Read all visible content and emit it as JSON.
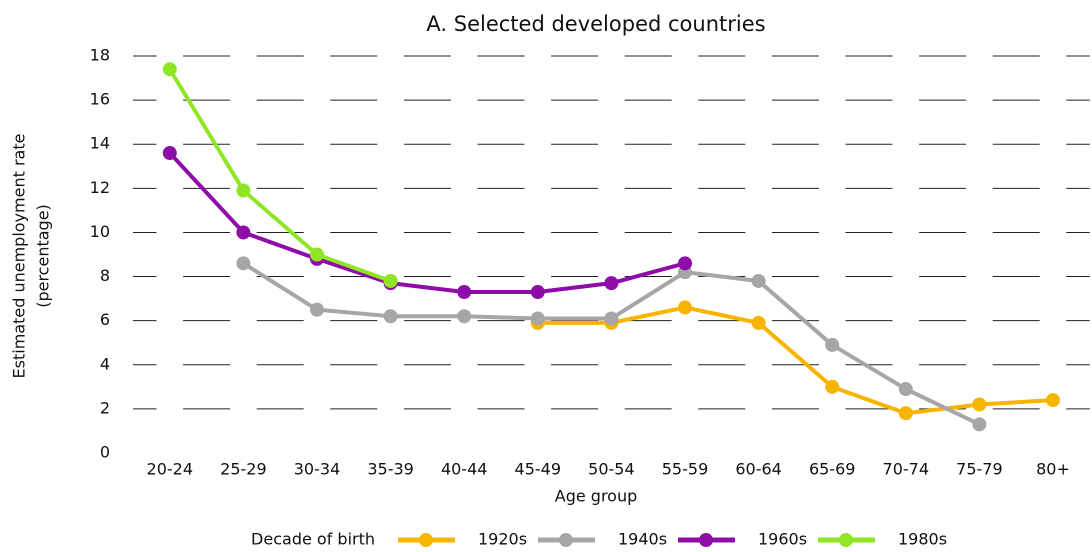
{
  "chart_data": {
    "type": "line",
    "title": "A.  Selected developed countries",
    "x_label": "Age group",
    "y_label": [
      "Estimated unemployment rate",
      "(percentage)"
    ],
    "legend_title": "Decade of birth",
    "legend": "bottom",
    "grid": true,
    "categories": [
      "20-24",
      "25-29",
      "30-34",
      "35-39",
      "40-44",
      "45-49",
      "50-54",
      "55-59",
      "60-64",
      "65-69",
      "70-74",
      "75-79",
      "80+"
    ],
    "ylim": [
      0,
      18
    ],
    "yticks": [
      0,
      2,
      4,
      6,
      8,
      10,
      12,
      14,
      16,
      18
    ],
    "series": [
      {
        "name": "1920s",
        "color": "#f7b500",
        "values": [
          null,
          null,
          null,
          null,
          null,
          5.9,
          5.9,
          6.6,
          5.9,
          3.0,
          1.8,
          2.2,
          2.4
        ]
      },
      {
        "name": "1940s",
        "color": "#a6a6a6",
        "values": [
          null,
          8.6,
          6.5,
          6.2,
          6.2,
          6.1,
          6.1,
          8.2,
          7.8,
          4.9,
          2.9,
          1.3,
          null
        ]
      },
      {
        "name": "1960s",
        "color": "#8e0ca8",
        "values": [
          13.6,
          10.0,
          8.8,
          7.7,
          7.3,
          7.3,
          7.7,
          8.6,
          null,
          null,
          null,
          null,
          null
        ]
      },
      {
        "name": "1980s",
        "color": "#8ee625",
        "values": [
          17.4,
          11.9,
          9.0,
          7.8,
          null,
          null,
          null,
          null,
          null,
          null,
          null,
          null,
          null
        ]
      }
    ]
  }
}
